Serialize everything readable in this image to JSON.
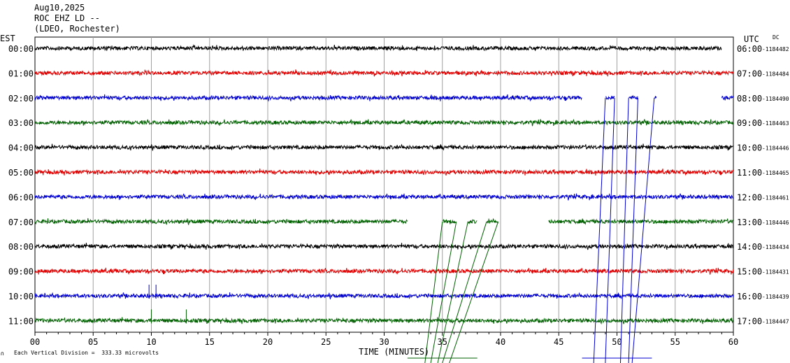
{
  "header": {
    "date": "Aug10,2025",
    "station": "ROC EHZ LD --",
    "network": "(LDEO, Rochester)"
  },
  "labels": {
    "left_zone": "EST",
    "right_zone": "UTC",
    "dc": "DC",
    "x_title": "TIME (MINUTES)",
    "scale_note": "Each Vertical Division =  333.33 microvolts",
    "scale_mark": "∩"
  },
  "colors": {
    "black": "#000000",
    "red": "#e00000",
    "blue": "#0000d0",
    "green": "#006000",
    "grid": "#a0a0a0"
  },
  "chart_data": {
    "type": "line",
    "title": "",
    "xlabel": "TIME (MINUTES)",
    "xlim": [
      0,
      60
    ],
    "x_ticks": [
      "00",
      "05",
      "10",
      "15",
      "20",
      "25",
      "30",
      "35",
      "40",
      "45",
      "50",
      "55",
      "60"
    ],
    "grid": true,
    "rows": [
      {
        "est": "00:00",
        "utc": "06:00",
        "dc": "-1184482",
        "color": "black",
        "gaps": [
          [
            59,
            60
          ]
        ],
        "spikes": []
      },
      {
        "est": "01:00",
        "utc": "07:00",
        "dc": "-1184484",
        "color": "red",
        "gaps": [],
        "spikes": []
      },
      {
        "est": "02:00",
        "utc": "08:00",
        "dc": "-1184490",
        "color": "blue",
        "gaps": [
          [
            47,
            49
          ],
          [
            49.8,
            51
          ],
          [
            51.8,
            53.2
          ],
          [
            53.4,
            59
          ]
        ],
        "spikes": []
      },
      {
        "est": "03:00",
        "utc": "09:00",
        "dc": "-1184463",
        "color": "green",
        "gaps": [],
        "spikes": []
      },
      {
        "est": "04:00",
        "utc": "10:00",
        "dc": "-1184446",
        "color": "black",
        "gaps": [],
        "spikes": []
      },
      {
        "est": "05:00",
        "utc": "11:00",
        "dc": "-1184465",
        "color": "red",
        "gaps": [],
        "spikes": []
      },
      {
        "est": "06:00",
        "utc": "12:00",
        "dc": "-1184461",
        "color": "blue",
        "gaps": [],
        "spikes": []
      },
      {
        "est": "07:00",
        "utc": "13:00",
        "dc": "-1184446",
        "color": "green",
        "gaps": [
          [
            32,
            35
          ],
          [
            36.2,
            37.2
          ],
          [
            38,
            38.8
          ],
          [
            39.8,
            44.1
          ]
        ],
        "spikes": []
      },
      {
        "est": "08:00",
        "utc": "14:00",
        "dc": "-1184434",
        "color": "black",
        "gaps": [],
        "spikes": []
      },
      {
        "est": "09:00",
        "utc": "15:00",
        "dc": "-1184431",
        "color": "red",
        "gaps": [],
        "spikes": []
      },
      {
        "est": "10:00",
        "utc": "16:00",
        "dc": "-1184439",
        "color": "blue",
        "gaps": [],
        "spikes": [
          9.8,
          10.4
        ]
      },
      {
        "est": "11:00",
        "utc": "17:00",
        "dc": "-1184447",
        "color": "green",
        "gaps": [],
        "spikes": [
          10,
          13
        ]
      }
    ],
    "glitch_lines": [
      {
        "color": "blue",
        "from": {
          "row": 2,
          "x": 49
        },
        "to": {
          "row": 12,
          "x": 48
        }
      },
      {
        "color": "blue",
        "from": {
          "row": 2,
          "x": 49.8
        },
        "to": {
          "row": 12,
          "x": 49
        }
      },
      {
        "color": "blue",
        "from": {
          "row": 2,
          "x": 51
        },
        "to": {
          "row": 12,
          "x": 50.3
        }
      },
      {
        "color": "blue",
        "from": {
          "row": 2,
          "x": 51.8
        },
        "to": {
          "row": 12,
          "x": 51
        }
      },
      {
        "color": "blue",
        "from": {
          "row": 2,
          "x": 53.2
        },
        "to": {
          "row": 12,
          "x": 51.3
        }
      },
      {
        "color": "green",
        "from": {
          "row": 7,
          "x": 35
        },
        "to": {
          "row": 12,
          "x": 33.5
        }
      },
      {
        "color": "green",
        "from": {
          "row": 7,
          "x": 36.2
        },
        "to": {
          "row": 12,
          "x": 34
        }
      },
      {
        "color": "green",
        "from": {
          "row": 7,
          "x": 37.2
        },
        "to": {
          "row": 12,
          "x": 34.6
        }
      },
      {
        "color": "green",
        "from": {
          "row": 7,
          "x": 38.8
        },
        "to": {
          "row": 12,
          "x": 35
        }
      },
      {
        "color": "green",
        "from": {
          "row": 7,
          "x": 39.8
        },
        "to": {
          "row": 12,
          "x": 35.6
        }
      }
    ],
    "bottom_bars": [
      {
        "color": "green",
        "x": [
          32,
          38
        ]
      },
      {
        "color": "blue",
        "x": [
          47,
          53
        ]
      }
    ]
  }
}
